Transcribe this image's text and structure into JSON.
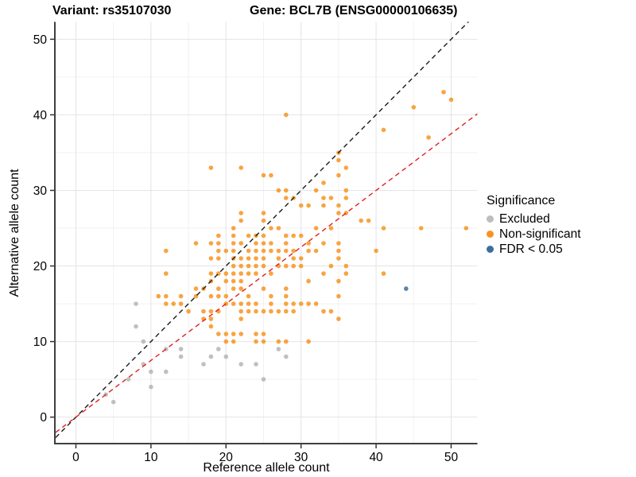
{
  "titles": {
    "left": "Variant: rs35107030",
    "right": "Gene: BCL7B (ENSG00000106635)"
  },
  "axes": {
    "x": {
      "label": "Reference allele count",
      "ticks": [
        0,
        10,
        20,
        30,
        40,
        50
      ],
      "min": -2.7,
      "max": 53.5
    },
    "y": {
      "label": "Alternative allele count",
      "ticks": [
        0,
        10,
        20,
        30,
        40,
        50
      ],
      "min": -3.4,
      "max": 52.3
    }
  },
  "legend": {
    "title": "Significance",
    "items": [
      {
        "label": "Excluded",
        "color": "#bdbdbd"
      },
      {
        "label": "Non-significant",
        "color": "#f79420"
      },
      {
        "label": "FDR < 0.05",
        "color": "#3e6d9c"
      }
    ]
  },
  "colors": {
    "excluded": "#b5b5b5",
    "non_significant": "#f79420",
    "fdr": "#3e6d9c",
    "identity_line": "#1a1a1a",
    "fit_line": "#e02020",
    "grid_major": "#e4e4e4",
    "grid_minor": "#f1f1f1",
    "axis_line": "#3f3f3f"
  },
  "chart_data": {
    "type": "scatter",
    "title": "Variant: rs35107030 / Gene: BCL7B (ENSG00000106635)",
    "xlabel": "Reference allele count",
    "ylabel": "Alternative allele count",
    "xlim": [
      -2.7,
      53.5
    ],
    "ylim": [
      -3.4,
      52.3
    ],
    "grid": true,
    "legend_position": "right",
    "lines": [
      {
        "name": "identity",
        "slope": 1,
        "intercept": 0,
        "style": "dashed",
        "color_key": "identity_line"
      },
      {
        "name": "expected-ratio",
        "slope": 0.75,
        "intercept": 0,
        "style": "dashed",
        "color_key": "fit_line"
      }
    ],
    "series": [
      {
        "name": "Excluded",
        "color_key": "excluded",
        "points": [
          [
            4,
            3
          ],
          [
            5,
            2
          ],
          [
            7,
            5
          ],
          [
            8,
            12
          ],
          [
            8,
            15
          ],
          [
            9,
            7
          ],
          [
            9,
            10
          ],
          [
            10,
            4
          ],
          [
            10,
            6
          ],
          [
            12,
            6
          ],
          [
            12,
            9
          ],
          [
            14,
            8
          ],
          [
            14,
            9
          ],
          [
            17,
            7
          ],
          [
            18,
            8
          ],
          [
            19,
            9
          ],
          [
            20,
            8
          ],
          [
            22,
            7
          ],
          [
            24,
            7
          ],
          [
            25,
            5
          ],
          [
            27,
            9
          ],
          [
            28,
            8
          ]
        ]
      },
      {
        "name": "Non-significant",
        "color_key": "non_significant",
        "points": [
          [
            49,
            43
          ],
          [
            50,
            42
          ],
          [
            45,
            41
          ],
          [
            28,
            40
          ],
          [
            41,
            38
          ],
          [
            47,
            37
          ],
          [
            35,
            35
          ],
          [
            35,
            34
          ],
          [
            18,
            33
          ],
          [
            22,
            33
          ],
          [
            36,
            33
          ],
          [
            25,
            32
          ],
          [
            26,
            32
          ],
          [
            35,
            32
          ],
          [
            33,
            31
          ],
          [
            27,
            30
          ],
          [
            28,
            30
          ],
          [
            32,
            30
          ],
          [
            36,
            30
          ],
          [
            28,
            29
          ],
          [
            29,
            29
          ],
          [
            33,
            29
          ],
          [
            34,
            29
          ],
          [
            36,
            29
          ],
          [
            30,
            28
          ],
          [
            31,
            28
          ],
          [
            33,
            28
          ],
          [
            35,
            28
          ],
          [
            22,
            27
          ],
          [
            25,
            27
          ],
          [
            35,
            27
          ],
          [
            36,
            27
          ],
          [
            22,
            26
          ],
          [
            25,
            26
          ],
          [
            38,
            26
          ],
          [
            39,
            26
          ],
          [
            21,
            25
          ],
          [
            26,
            25
          ],
          [
            27,
            25
          ],
          [
            32,
            25
          ],
          [
            34,
            25
          ],
          [
            41,
            25
          ],
          [
            46,
            25
          ],
          [
            52,
            25
          ],
          [
            19,
            24
          ],
          [
            21,
            24
          ],
          [
            23,
            24
          ],
          [
            24,
            24
          ],
          [
            25,
            24
          ],
          [
            28,
            24
          ],
          [
            29,
            24
          ],
          [
            30,
            24
          ],
          [
            16,
            23
          ],
          [
            18,
            23
          ],
          [
            19,
            23
          ],
          [
            21,
            23
          ],
          [
            22,
            23
          ],
          [
            24,
            23
          ],
          [
            25,
            23
          ],
          [
            26,
            23
          ],
          [
            28,
            23
          ],
          [
            31,
            23
          ],
          [
            33,
            23
          ],
          [
            35,
            23
          ],
          [
            12,
            22
          ],
          [
            19,
            22
          ],
          [
            20,
            22
          ],
          [
            21,
            22
          ],
          [
            23,
            22
          ],
          [
            24,
            22
          ],
          [
            25,
            22
          ],
          [
            26,
            22
          ],
          [
            27,
            22
          ],
          [
            28,
            22
          ],
          [
            29,
            22
          ],
          [
            31,
            22
          ],
          [
            32,
            22
          ],
          [
            35,
            22
          ],
          [
            40,
            22
          ],
          [
            18,
            21
          ],
          [
            19,
            21
          ],
          [
            21,
            21
          ],
          [
            22,
            21
          ],
          [
            23,
            21
          ],
          [
            24,
            21
          ],
          [
            25,
            21
          ],
          [
            27,
            21
          ],
          [
            29,
            21
          ],
          [
            30,
            21
          ],
          [
            35,
            21
          ],
          [
            21,
            20
          ],
          [
            22,
            20
          ],
          [
            23,
            20
          ],
          [
            24,
            20
          ],
          [
            25,
            20
          ],
          [
            27,
            20
          ],
          [
            28,
            20
          ],
          [
            29,
            20
          ],
          [
            30,
            20
          ],
          [
            34,
            20
          ],
          [
            36,
            20
          ],
          [
            12,
            19
          ],
          [
            18,
            19
          ],
          [
            19,
            19
          ],
          [
            20,
            19
          ],
          [
            21,
            19
          ],
          [
            22,
            19
          ],
          [
            23,
            19
          ],
          [
            24,
            19
          ],
          [
            26,
            19
          ],
          [
            33,
            19
          ],
          [
            36,
            19
          ],
          [
            41,
            19
          ],
          [
            18,
            18
          ],
          [
            20,
            18
          ],
          [
            21,
            18
          ],
          [
            22,
            18
          ],
          [
            31,
            18
          ],
          [
            35,
            18
          ],
          [
            16,
            17
          ],
          [
            17,
            17
          ],
          [
            19,
            17
          ],
          [
            21,
            17
          ],
          [
            22,
            17
          ],
          [
            25,
            17
          ],
          [
            28,
            17
          ],
          [
            11,
            16
          ],
          [
            12,
            16
          ],
          [
            14,
            16
          ],
          [
            16,
            16
          ],
          [
            18,
            16
          ],
          [
            19,
            16
          ],
          [
            20,
            16
          ],
          [
            23,
            16
          ],
          [
            26,
            16
          ],
          [
            28,
            16
          ],
          [
            35,
            16
          ],
          [
            12,
            15
          ],
          [
            13,
            15
          ],
          [
            14,
            15
          ],
          [
            20,
            15
          ],
          [
            21,
            15
          ],
          [
            22,
            15
          ],
          [
            23,
            15
          ],
          [
            24,
            15
          ],
          [
            26,
            15
          ],
          [
            28,
            15
          ],
          [
            29,
            15
          ],
          [
            30,
            15
          ],
          [
            31,
            15
          ],
          [
            32,
            15
          ],
          [
            15,
            14
          ],
          [
            17,
            14
          ],
          [
            18,
            14
          ],
          [
            19,
            14
          ],
          [
            22,
            14
          ],
          [
            23,
            14
          ],
          [
            24,
            14
          ],
          [
            25,
            14
          ],
          [
            26,
            14
          ],
          [
            27,
            14
          ],
          [
            28,
            14
          ],
          [
            29,
            14
          ],
          [
            33,
            14
          ],
          [
            34,
            14
          ],
          [
            17,
            13
          ],
          [
            18,
            13
          ],
          [
            22,
            13
          ],
          [
            35,
            13
          ],
          [
            18,
            12
          ],
          [
            19,
            11
          ],
          [
            20,
            11
          ],
          [
            21,
            11
          ],
          [
            22,
            11
          ],
          [
            24,
            11
          ],
          [
            25,
            11
          ],
          [
            20,
            10
          ],
          [
            21,
            10
          ],
          [
            24,
            10
          ],
          [
            25,
            10
          ],
          [
            27,
            10
          ],
          [
            28,
            10
          ],
          [
            31,
            10
          ]
        ]
      },
      {
        "name": "FDR < 0.05",
        "color_key": "fdr",
        "points": [
          [
            44,
            17
          ]
        ]
      }
    ]
  }
}
